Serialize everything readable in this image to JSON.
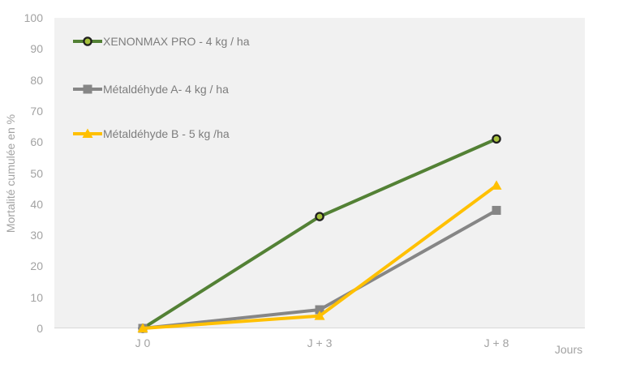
{
  "chart_data": {
    "type": "line",
    "categories": [
      "J 0",
      "J + 3",
      "J + 8"
    ],
    "series": [
      {
        "name": "XENONMAX PRO - 4 kg / ha",
        "values": [
          0,
          36,
          61
        ],
        "color": "#538135",
        "marker": "circle",
        "marker_fill": "#a6c13c",
        "marker_stroke": "#1e1e1e"
      },
      {
        "name": "Métaldéhyde A- 4 kg / ha",
        "values": [
          0,
          6,
          38
        ],
        "color": "#868686",
        "marker": "square",
        "marker_fill": "#868686"
      },
      {
        "name": "Métaldéhyde B - 5 kg /ha",
        "values": [
          0,
          4,
          46
        ],
        "color": "#ffc000",
        "marker": "triangle",
        "marker_fill": "#ffc000"
      }
    ],
    "xlabel": "Jours",
    "ylabel": "Mortalité cumulée en %",
    "ylim": [
      0,
      100
    ],
    "yticks": [
      0,
      10,
      20,
      30,
      40,
      50,
      60,
      70,
      80,
      90,
      100
    ],
    "grid": false,
    "legend_position": "inside-top-left",
    "plot_bg": "#f1f1f1",
    "axis_line_color": "#d8d8d8",
    "tick_text_color": "#a2a2a2",
    "legend_text_color": "#7d7d7d"
  }
}
